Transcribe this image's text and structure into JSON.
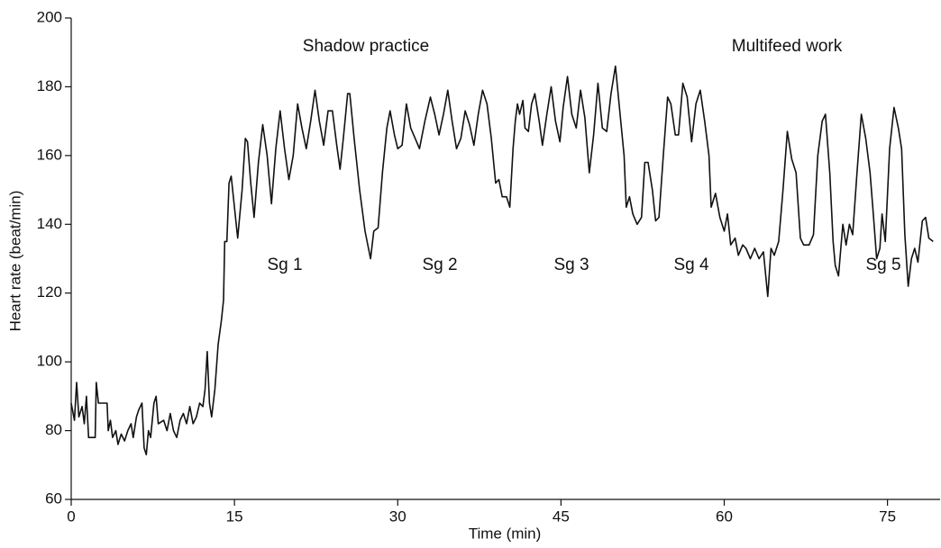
{
  "chart_data": {
    "type": "line",
    "x_label": "Time (min)",
    "y_label": "Heart rate (beat/min)",
    "annotations": [
      "Shadow practice",
      "Multifeed work",
      "Sg 1",
      "Sg 2",
      "Sg 3",
      "Sg 4",
      "Sg 5"
    ],
    "color": "#111111",
    "xlim": [
      0,
      80
    ],
    "ylim": [
      60,
      200
    ],
    "xticks": [
      0,
      15,
      30,
      45,
      60,
      75
    ],
    "yticks": [
      60,
      80,
      100,
      120,
      140,
      160,
      180,
      200
    ],
    "x": [
      0,
      0.3,
      0.5,
      0.7,
      1,
      1.2,
      1.4,
      1.6,
      2.2,
      2.3,
      2.5,
      3.3,
      3.4,
      3.6,
      3.8,
      4.1,
      4.3,
      4.6,
      4.9,
      5.2,
      5.5,
      5.7,
      6,
      6.2,
      6.5,
      6.7,
      6.9,
      7.1,
      7.3,
      7.6,
      7.8,
      8,
      8.5,
      8.8,
      9.1,
      9.4,
      9.7,
      10,
      10.3,
      10.6,
      10.9,
      11.2,
      11.5,
      11.8,
      12.1,
      12.3,
      12.5,
      12.7,
      12.9,
      13.2,
      13.5,
      13.8,
      14,
      14.1,
      14.3,
      14.5,
      14.7,
      15,
      15.3,
      15.7,
      16,
      16.2,
      16.5,
      16.8,
      17.2,
      17.6,
      18,
      18.4,
      18.8,
      19.2,
      19.6,
      20,
      20.4,
      20.8,
      21.2,
      21.6,
      22,
      22.4,
      22.8,
      23.2,
      23.6,
      24,
      24.4,
      24.7,
      25,
      25.4,
      25.6,
      26,
      26.5,
      27,
      27.5,
      27.8,
      28.2,
      28.6,
      29,
      29.3,
      29.7,
      30,
      30.4,
      30.8,
      31.2,
      31.6,
      32,
      32.5,
      33,
      33.4,
      33.8,
      34.2,
      34.6,
      35,
      35.4,
      35.8,
      36.2,
      36.6,
      37,
      37.4,
      37.8,
      38.2,
      38.6,
      39,
      39.3,
      39.6,
      40,
      40.3,
      40.6,
      40.8,
      41,
      41.2,
      41.5,
      41.7,
      42,
      42.3,
      42.6,
      43,
      43.3,
      43.7,
      44.1,
      44.5,
      44.9,
      45.2,
      45.6,
      46,
      46.4,
      46.8,
      47.2,
      47.6,
      48,
      48.4,
      48.8,
      49.2,
      49.6,
      50,
      50.4,
      50.8,
      51,
      51.3,
      51.6,
      52,
      52.4,
      52.7,
      53,
      53.4,
      53.7,
      54,
      54.4,
      54.8,
      55.1,
      55.5,
      55.8,
      56.2,
      56.6,
      57,
      57.4,
      57.8,
      58.2,
      58.6,
      58.8,
      59.2,
      59.6,
      60,
      60.3,
      60.6,
      61,
      61.3,
      61.7,
      62,
      62.4,
      62.8,
      63.2,
      63.6,
      64,
      64.3,
      64.6,
      65,
      65.4,
      65.8,
      66.2,
      66.6,
      67,
      67.3,
      67.8,
      68.2,
      68.6,
      69,
      69.3,
      69.7,
      70,
      70.2,
      70.5,
      70.9,
      71.2,
      71.5,
      71.8,
      72.2,
      72.6,
      73,
      73.4,
      73.7,
      74,
      74.3,
      74.5,
      74.8,
      75.2,
      75.6,
      76,
      76.3,
      76.6,
      76.9,
      77.2,
      77.5,
      77.8,
      78.2,
      78.5,
      78.8,
      79.2
    ],
    "values": [
      88,
      83,
      94,
      84,
      87,
      82,
      90,
      78,
      78,
      94,
      88,
      88,
      80,
      83,
      78,
      80,
      76,
      79,
      77,
      80,
      82,
      78,
      84,
      86,
      88,
      75,
      73,
      80,
      78,
      88,
      90,
      82,
      83,
      80,
      85,
      80,
      78,
      83,
      85,
      82,
      87,
      82,
      84,
      88,
      87,
      92,
      103,
      88,
      84,
      92,
      105,
      112,
      118,
      135,
      135,
      152,
      154,
      145,
      136,
      150,
      165,
      164,
      152,
      142,
      158,
      169,
      160,
      146,
      162,
      173,
      162,
      153,
      160,
      175,
      168,
      162,
      170,
      179,
      170,
      163,
      173,
      173,
      163,
      156,
      165,
      178,
      178,
      165,
      150,
      138,
      130,
      138,
      139,
      155,
      168,
      173,
      166,
      162,
      163,
      175,
      168,
      165,
      162,
      170,
      177,
      172,
      166,
      172,
      179,
      170,
      162,
      165,
      173,
      169,
      163,
      172,
      179,
      175,
      165,
      152,
      153,
      148,
      148,
      145,
      162,
      170,
      175,
      172,
      176,
      168,
      167,
      175,
      178,
      170,
      163,
      172,
      180,
      170,
      164,
      174,
      183,
      172,
      168,
      179,
      171,
      155,
      166,
      181,
      168,
      167,
      178,
      186,
      173,
      160,
      145,
      148,
      143,
      140,
      142,
      158,
      158,
      150,
      141,
      142,
      160,
      177,
      175,
      166,
      166,
      181,
      177,
      164,
      175,
      179,
      170,
      160,
      145,
      149,
      142,
      138,
      143,
      134,
      136,
      131,
      134,
      133,
      130,
      133,
      130,
      132,
      119,
      133,
      131,
      135,
      150,
      167,
      159,
      155,
      136,
      134,
      134,
      137,
      160,
      170,
      172,
      155,
      135,
      128,
      125,
      140,
      134,
      140,
      137,
      155,
      172,
      165,
      155,
      143,
      130,
      133,
      143,
      135,
      162,
      174,
      168,
      162,
      137,
      122,
      130,
      133,
      129,
      141,
      142,
      136,
      135
    ]
  }
}
